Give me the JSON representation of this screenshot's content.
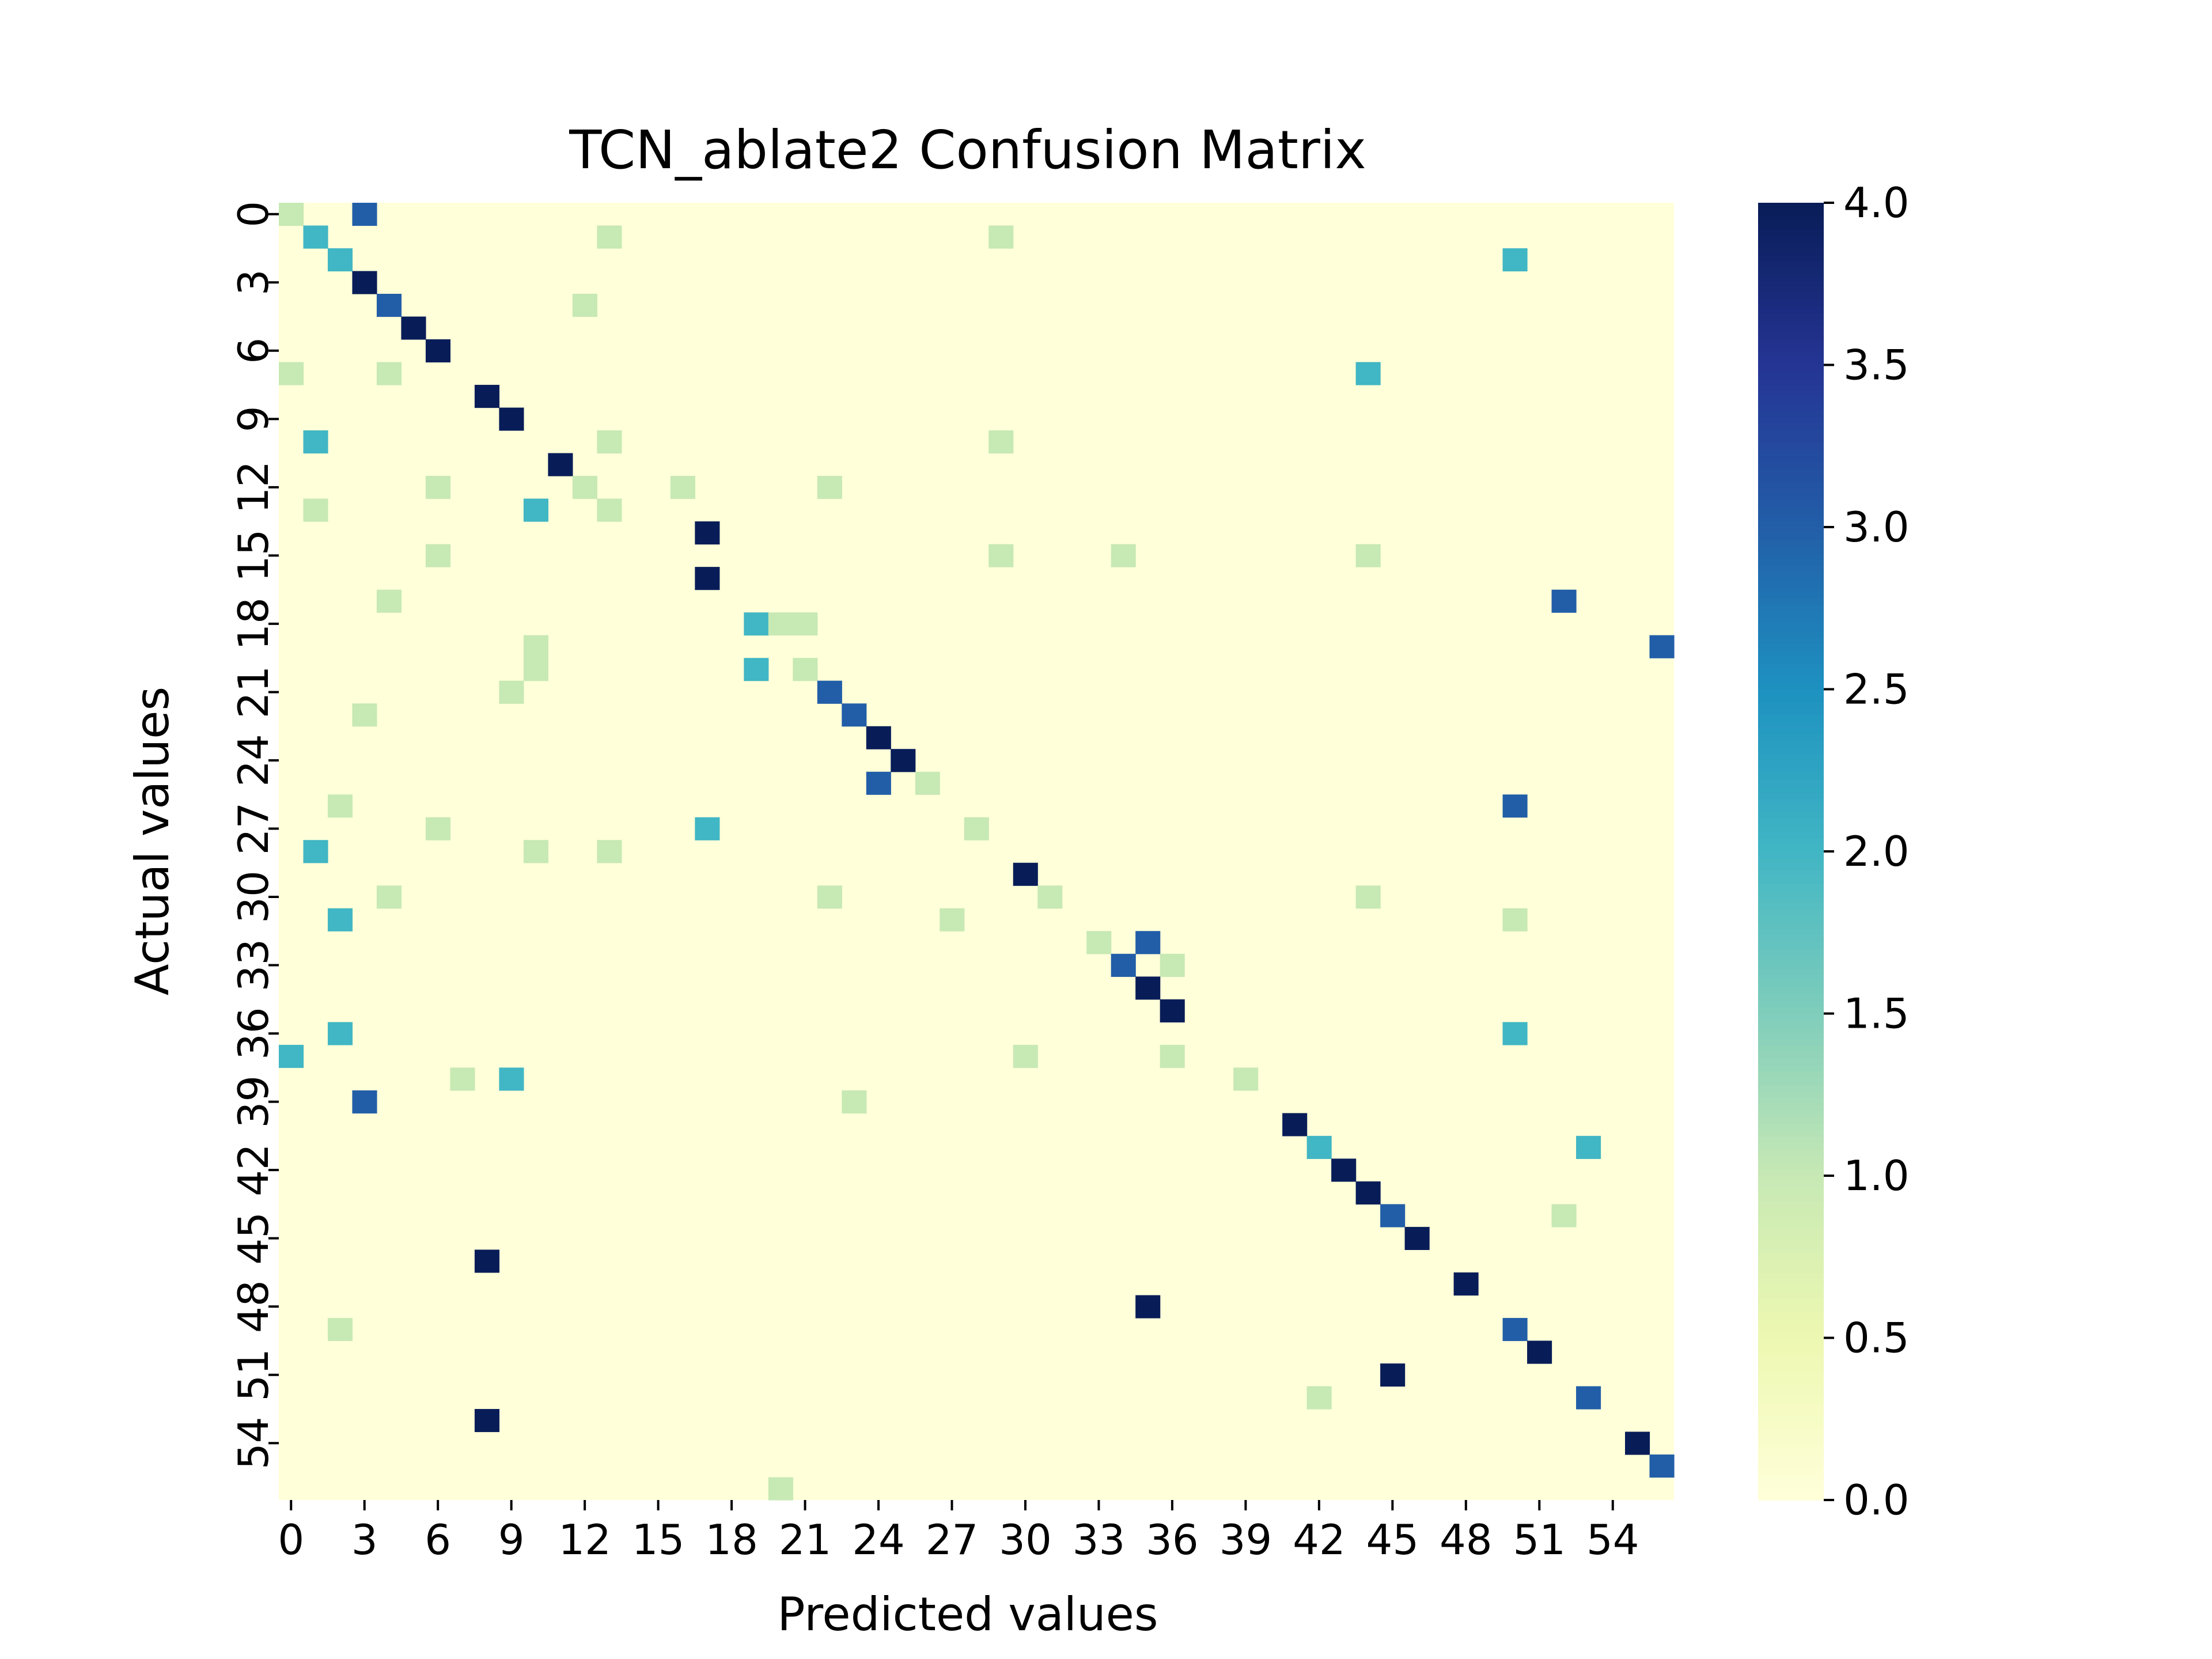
{
  "chart_data": {
    "type": "heatmap",
    "title": "TCN_ablate2 Confusion Matrix",
    "xlabel": "Predicted values",
    "ylabel": "Actual values",
    "n": 57,
    "x_tick_labels": [
      "0",
      "3",
      "6",
      "9",
      "12",
      "15",
      "18",
      "21",
      "24",
      "27",
      "30",
      "33",
      "36",
      "39",
      "42",
      "45",
      "48",
      "51",
      "54"
    ],
    "y_tick_labels": [
      "0",
      "3",
      "6",
      "9",
      "12",
      "15",
      "18",
      "21",
      "24",
      "27",
      "30",
      "33",
      "36",
      "39",
      "42",
      "45",
      "48",
      "51",
      "54"
    ],
    "tick_step": 3,
    "value_range": [
      0,
      4
    ],
    "colormap": "YlGnBu",
    "colorbar_ticks": [
      "0.0",
      "0.5",
      "1.0",
      "1.5",
      "2.0",
      "2.5",
      "3.0",
      "3.5",
      "4.0"
    ],
    "cells": [
      [
        0,
        0,
        1
      ],
      [
        0,
        3,
        3
      ],
      [
        1,
        1,
        2
      ],
      [
        1,
        13,
        1
      ],
      [
        1,
        29,
        1
      ],
      [
        2,
        2,
        2
      ],
      [
        2,
        50,
        2
      ],
      [
        3,
        3,
        4
      ],
      [
        4,
        4,
        3
      ],
      [
        4,
        12,
        1
      ],
      [
        5,
        5,
        4
      ],
      [
        6,
        6,
        4
      ],
      [
        7,
        0,
        1
      ],
      [
        7,
        4,
        1
      ],
      [
        7,
        44,
        2
      ],
      [
        8,
        8,
        4
      ],
      [
        9,
        9,
        4
      ],
      [
        10,
        1,
        2
      ],
      [
        10,
        13,
        1
      ],
      [
        10,
        29,
        1
      ],
      [
        11,
        11,
        4
      ],
      [
        12,
        6,
        1
      ],
      [
        12,
        12,
        1
      ],
      [
        12,
        16,
        1
      ],
      [
        12,
        22,
        1
      ],
      [
        13,
        1,
        1
      ],
      [
        13,
        10,
        2
      ],
      [
        13,
        13,
        1
      ],
      [
        14,
        17,
        4
      ],
      [
        15,
        6,
        1
      ],
      [
        15,
        29,
        1
      ],
      [
        15,
        34,
        1
      ],
      [
        15,
        44,
        1
      ],
      [
        16,
        17,
        4
      ],
      [
        17,
        4,
        1
      ],
      [
        17,
        52,
        3
      ],
      [
        18,
        19,
        2
      ],
      [
        18,
        20,
        1
      ],
      [
        18,
        21,
        1
      ],
      [
        19,
        10,
        1
      ],
      [
        19,
        56,
        3
      ],
      [
        20,
        10,
        1
      ],
      [
        20,
        19,
        2
      ],
      [
        20,
        21,
        1
      ],
      [
        21,
        9,
        1
      ],
      [
        21,
        22,
        3
      ],
      [
        22,
        3,
        1
      ],
      [
        22,
        23,
        3
      ],
      [
        23,
        24,
        4
      ],
      [
        24,
        25,
        4
      ],
      [
        25,
        24,
        3
      ],
      [
        25,
        26,
        1
      ],
      [
        26,
        2,
        1
      ],
      [
        26,
        50,
        3
      ],
      [
        27,
        6,
        1
      ],
      [
        27,
        17,
        2
      ],
      [
        27,
        28,
        1
      ],
      [
        28,
        1,
        2
      ],
      [
        28,
        10,
        1
      ],
      [
        28,
        13,
        1
      ],
      [
        29,
        30,
        4
      ],
      [
        30,
        4,
        1
      ],
      [
        30,
        22,
        1
      ],
      [
        30,
        31,
        1
      ],
      [
        30,
        44,
        1
      ],
      [
        31,
        2,
        2
      ],
      [
        31,
        27,
        1
      ],
      [
        31,
        50,
        1
      ],
      [
        32,
        33,
        1
      ],
      [
        32,
        35,
        3
      ],
      [
        33,
        34,
        3
      ],
      [
        33,
        36,
        1
      ],
      [
        34,
        35,
        4
      ],
      [
        35,
        36,
        4
      ],
      [
        36,
        2,
        2
      ],
      [
        36,
        50,
        2
      ],
      [
        37,
        0,
        2
      ],
      [
        37,
        30,
        1
      ],
      [
        37,
        36,
        1
      ],
      [
        38,
        7,
        1
      ],
      [
        38,
        9,
        2
      ],
      [
        38,
        39,
        1
      ],
      [
        39,
        3,
        3
      ],
      [
        39,
        23,
        1
      ],
      [
        40,
        41,
        4
      ],
      [
        41,
        42,
        2
      ],
      [
        41,
        53,
        2
      ],
      [
        42,
        43,
        4
      ],
      [
        43,
        44,
        4
      ],
      [
        44,
        45,
        3
      ],
      [
        44,
        52,
        1
      ],
      [
        45,
        46,
        4
      ],
      [
        46,
        8,
        4
      ],
      [
        47,
        48,
        4
      ],
      [
        48,
        35,
        4
      ],
      [
        49,
        2,
        1
      ],
      [
        49,
        50,
        3
      ],
      [
        50,
        51,
        4
      ],
      [
        51,
        45,
        4
      ],
      [
        52,
        42,
        1
      ],
      [
        52,
        53,
        3
      ],
      [
        53,
        8,
        4
      ],
      [
        54,
        55,
        4
      ],
      [
        55,
        56,
        3
      ],
      [
        56,
        20,
        1
      ]
    ]
  }
}
